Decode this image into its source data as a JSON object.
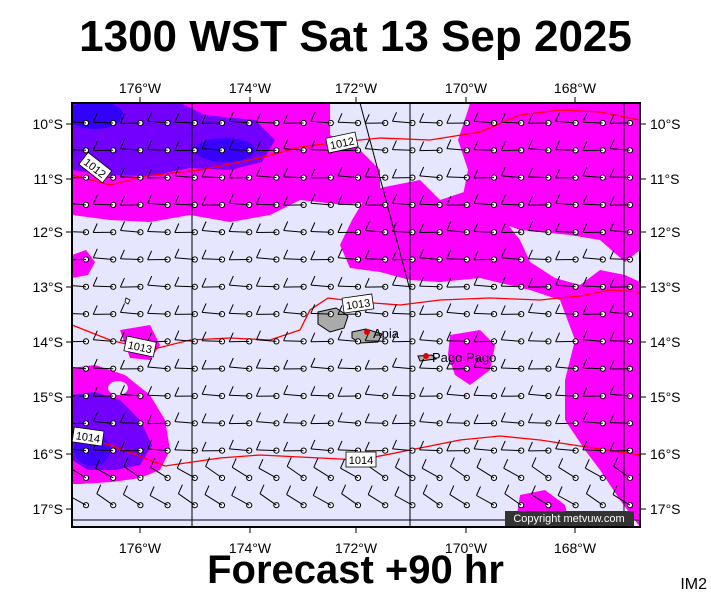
{
  "header": {
    "title": "1300 WST Sat 13 Sep 2025"
  },
  "footer": {
    "forecast_label": "Forecast +90 hr",
    "code": "IM2"
  },
  "map": {
    "lon_labels": [
      "176°W",
      "174°W",
      "172°W",
      "170°W",
      "168°W"
    ],
    "lat_labels": [
      "10°S",
      "11°S",
      "12°S",
      "13°S",
      "14°S",
      "15°S",
      "16°S",
      "17°S"
    ],
    "isobar_labels": [
      "1012",
      "1012",
      "1013",
      "1013",
      "1014",
      "1014"
    ],
    "places": [
      "Apia",
      "Pago Pago"
    ],
    "copyright": "Copyright metvuw.com",
    "colors": {
      "background": "#e6e6ff",
      "rain_light": "#ff00ff",
      "rain_heavy": "#5a00ff",
      "isobar": "#ff0000",
      "land": "#aaaaaa"
    }
  }
}
